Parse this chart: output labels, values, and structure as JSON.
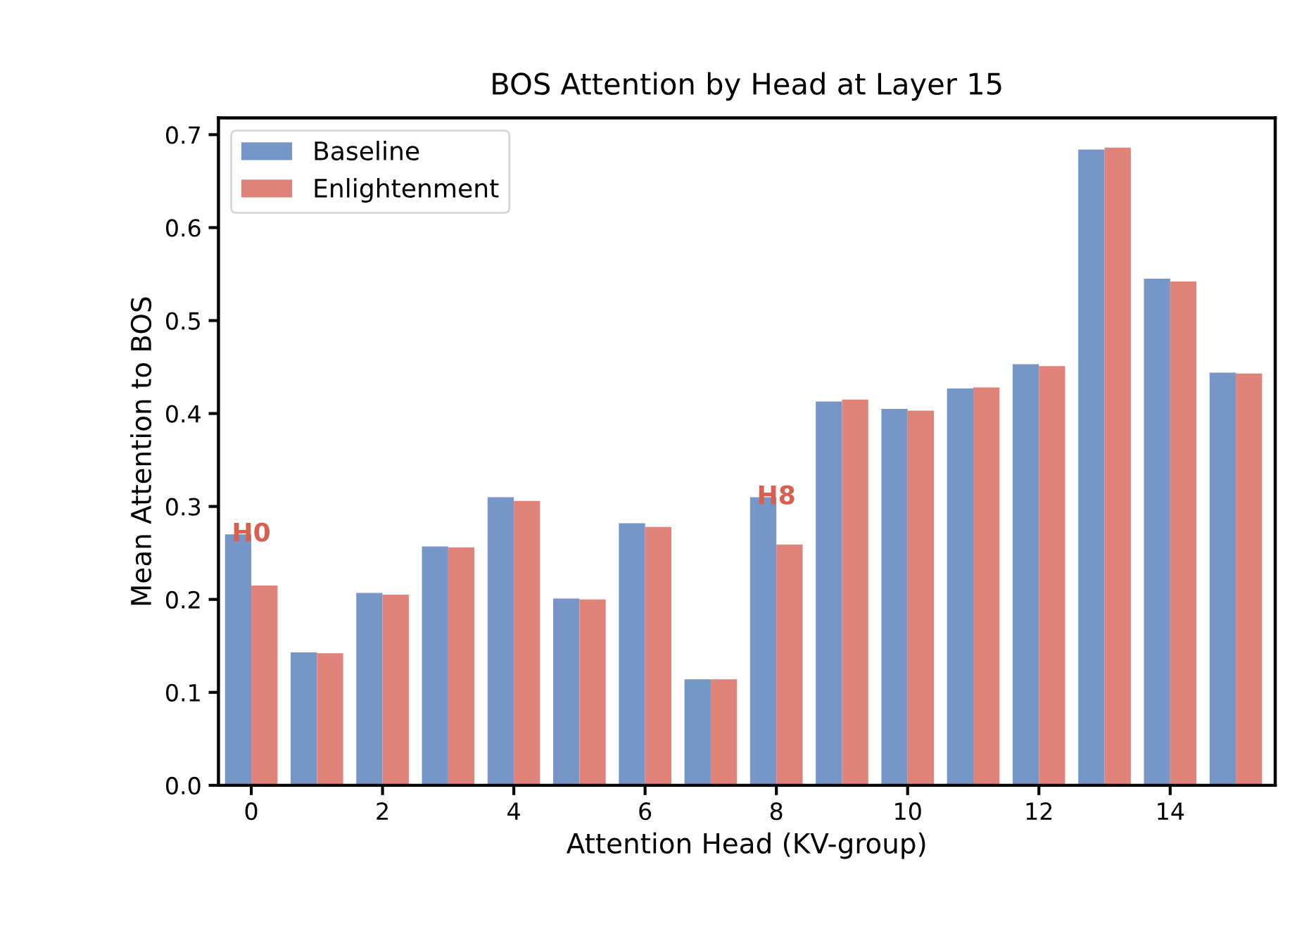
{
  "chart_data": {
    "type": "bar",
    "title": "BOS Attention by Head at Layer 15",
    "xlabel": "Attention Head (KV-group)",
    "ylabel": "Mean Attention to BOS",
    "x": [
      0,
      1,
      2,
      3,
      4,
      5,
      6,
      7,
      8,
      9,
      10,
      11,
      12,
      13,
      14,
      15
    ],
    "series": [
      {
        "name": "Baseline",
        "color": "#7596c6",
        "values": [
          0.27,
          0.143,
          0.207,
          0.257,
          0.31,
          0.201,
          0.282,
          0.114,
          0.31,
          0.413,
          0.405,
          0.427,
          0.453,
          0.684,
          0.545,
          0.444
        ]
      },
      {
        "name": "Enlightenment",
        "color": "#e0837a",
        "values": [
          0.215,
          0.142,
          0.205,
          0.256,
          0.306,
          0.2,
          0.278,
          0.114,
          0.259,
          0.415,
          0.403,
          0.428,
          0.451,
          0.686,
          0.542,
          0.443
        ]
      }
    ],
    "xlim": [
      -0.5,
      15.6
    ],
    "xticks": [
      0,
      2,
      4,
      6,
      8,
      10,
      12,
      14
    ],
    "ylim": [
      0,
      0.718
    ],
    "yticks": [
      {
        "value": 0,
        "label": "0.0"
      },
      {
        "value": 0.1,
        "label": "0.1"
      },
      {
        "value": 0.2,
        "label": "0.2"
      },
      {
        "value": 0.3,
        "label": "0.3"
      },
      {
        "value": 0.4,
        "label": "0.4"
      },
      {
        "value": 0.5,
        "label": "0.5"
      },
      {
        "value": 0.6,
        "label": "0.6"
      },
      {
        "value": 0.7,
        "label": "0.7"
      }
    ],
    "annotations": [
      {
        "text": "H0",
        "x": 0,
        "y": 0.27
      },
      {
        "text": "H8",
        "x": 8,
        "y": 0.31
      }
    ],
    "legend": "top left",
    "grid": false
  }
}
